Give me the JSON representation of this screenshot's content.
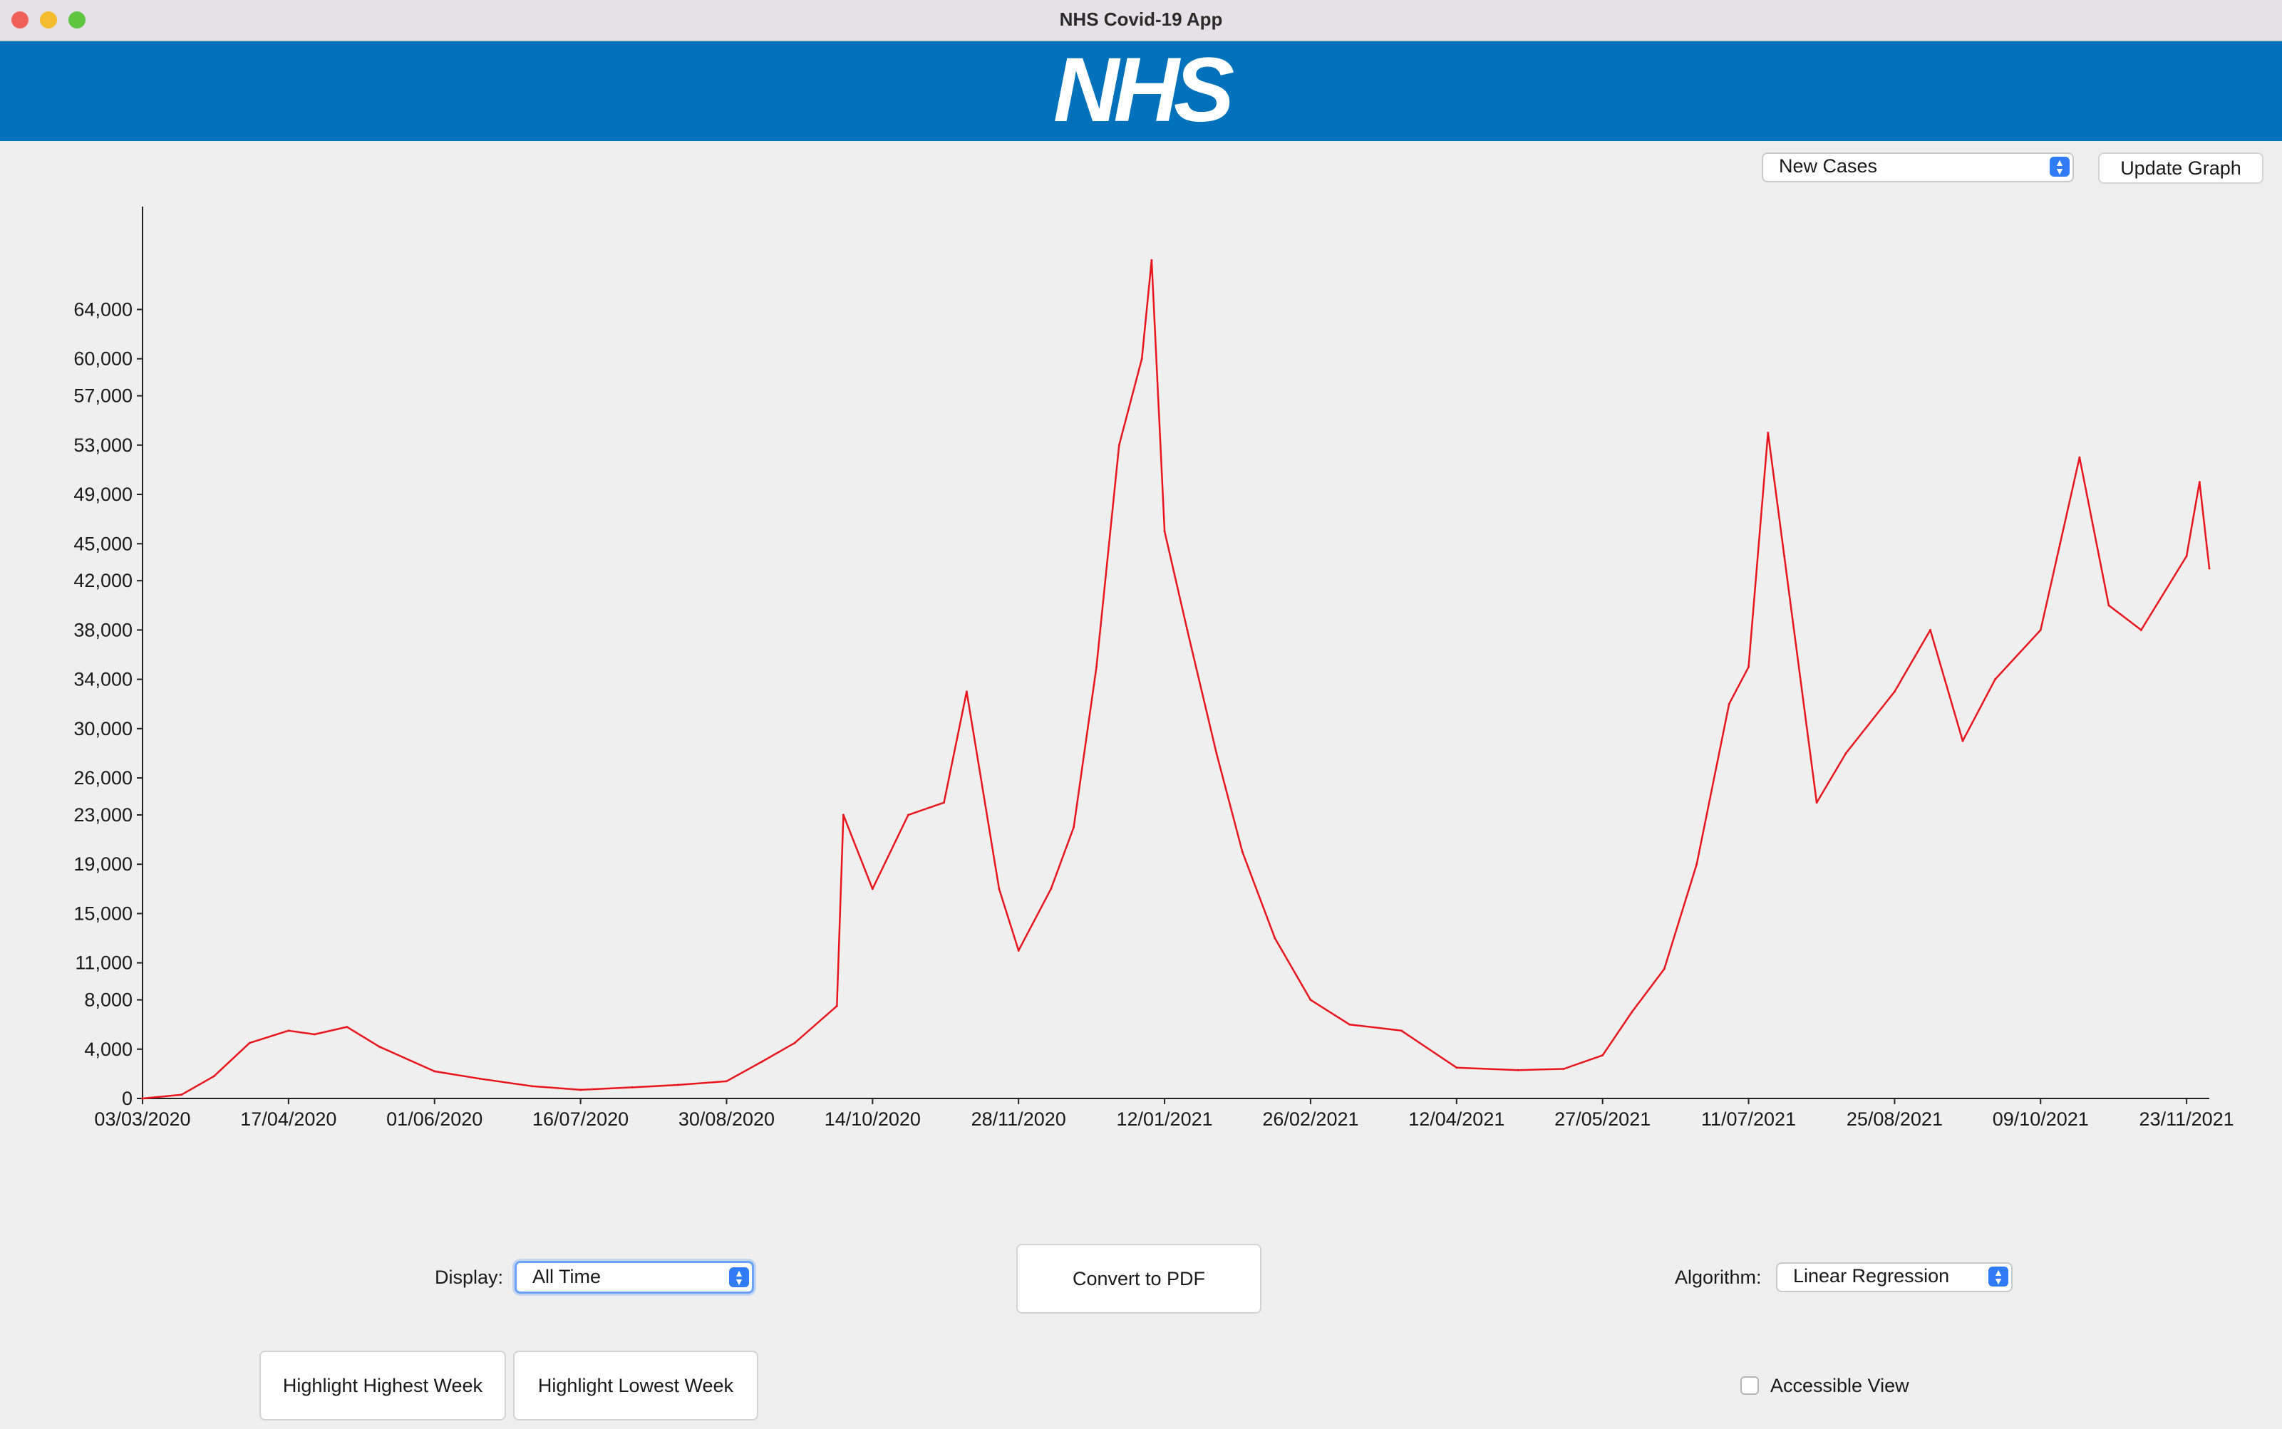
{
  "window": {
    "title": "NHS Covid-19 App"
  },
  "banner": {
    "logo_text": "NHS",
    "color": "#0072bc"
  },
  "toolbar": {
    "metric_select": "New Cases",
    "update_button": "Update Graph"
  },
  "controls": {
    "display_label": "Display:",
    "display_value": "All Time",
    "convert_button": "Convert to PDF",
    "algorithm_label": "Algorithm:",
    "algorithm_value": "Linear Regression",
    "highest_button": "Highlight Highest Week",
    "lowest_button": "Highlight Lowest Week",
    "accessible_label": "Accessible View",
    "accessible_checked": false
  },
  "chart_data": {
    "type": "line",
    "title": "",
    "xlabel": "",
    "ylabel": "",
    "series": [
      {
        "color": "#e8161c",
        "x_start": "03/03/2020",
        "x_end": "30/11/2021",
        "values_daily_approx": "see points"
      }
    ],
    "points": [
      [
        "03/03/2020",
        0
      ],
      [
        "15/03/2020",
        300
      ],
      [
        "25/03/2020",
        1800
      ],
      [
        "05/04/2020",
        4500
      ],
      [
        "17/04/2020",
        5500
      ],
      [
        "25/04/2020",
        5200
      ],
      [
        "05/05/2020",
        5800
      ],
      [
        "15/05/2020",
        4200
      ],
      [
        "01/06/2020",
        2200
      ],
      [
        "15/06/2020",
        1600
      ],
      [
        "01/07/2020",
        1000
      ],
      [
        "16/07/2020",
        700
      ],
      [
        "01/08/2020",
        900
      ],
      [
        "15/08/2020",
        1100
      ],
      [
        "30/08/2020",
        1400
      ],
      [
        "10/09/2020",
        3000
      ],
      [
        "20/09/2020",
        4500
      ],
      [
        "03/10/2020",
        7500
      ],
      [
        "05/10/2020",
        23000
      ],
      [
        "14/10/2020",
        17000
      ],
      [
        "25/10/2020",
        23000
      ],
      [
        "05/11/2020",
        24000
      ],
      [
        "12/11/2020",
        33000
      ],
      [
        "22/11/2020",
        17000
      ],
      [
        "28/11/2020",
        12000
      ],
      [
        "08/12/2020",
        17000
      ],
      [
        "15/12/2020",
        22000
      ],
      [
        "22/12/2020",
        35000
      ],
      [
        "29/12/2020",
        53000
      ],
      [
        "05/01/2021",
        60000
      ],
      [
        "08/01/2021",
        68000
      ],
      [
        "12/01/2021",
        46000
      ],
      [
        "19/01/2021",
        38000
      ],
      [
        "28/01/2021",
        28000
      ],
      [
        "05/02/2021",
        20000
      ],
      [
        "15/02/2021",
        13000
      ],
      [
        "26/02/2021",
        8000
      ],
      [
        "10/03/2021",
        6000
      ],
      [
        "26/03/2021",
        5500
      ],
      [
        "12/04/2021",
        2500
      ],
      [
        "01/05/2021",
        2300
      ],
      [
        "15/05/2021",
        2400
      ],
      [
        "27/05/2021",
        3500
      ],
      [
        "05/06/2021",
        7000
      ],
      [
        "15/06/2021",
        10500
      ],
      [
        "25/06/2021",
        19000
      ],
      [
        "05/07/2021",
        32000
      ],
      [
        "11/07/2021",
        35000
      ],
      [
        "17/07/2021",
        54000
      ],
      [
        "22/07/2021",
        44000
      ],
      [
        "01/08/2021",
        24000
      ],
      [
        "10/08/2021",
        28000
      ],
      [
        "25/08/2021",
        33000
      ],
      [
        "05/09/2021",
        38000
      ],
      [
        "15/09/2021",
        29000
      ],
      [
        "25/09/2021",
        34000
      ],
      [
        "09/10/2021",
        38000
      ],
      [
        "15/10/2021",
        45000
      ],
      [
        "21/10/2021",
        52000
      ],
      [
        "30/10/2021",
        40000
      ],
      [
        "09/11/2021",
        38000
      ],
      [
        "23/11/2021",
        44000
      ],
      [
        "27/11/2021",
        50000
      ],
      [
        "30/11/2021",
        43000
      ]
    ],
    "x_ticks": [
      "03/03/2020",
      "17/04/2020",
      "01/06/2020",
      "16/07/2020",
      "30/08/2020",
      "14/10/2020",
      "28/11/2020",
      "12/01/2021",
      "26/02/2021",
      "12/04/2021",
      "27/05/2021",
      "11/07/2021",
      "25/08/2021",
      "09/10/2021",
      "23/11/2021"
    ],
    "y_ticks": [
      "0",
      "4,000",
      "8,000",
      "11,000",
      "15,000",
      "19,000",
      "23,000",
      "26,000",
      "30,000",
      "34,000",
      "38,000",
      "42,000",
      "45,000",
      "49,000",
      "53,000",
      "57,000",
      "60,000",
      "64,000"
    ],
    "ylim": [
      0,
      72000
    ],
    "grid": false,
    "legend": "none"
  }
}
